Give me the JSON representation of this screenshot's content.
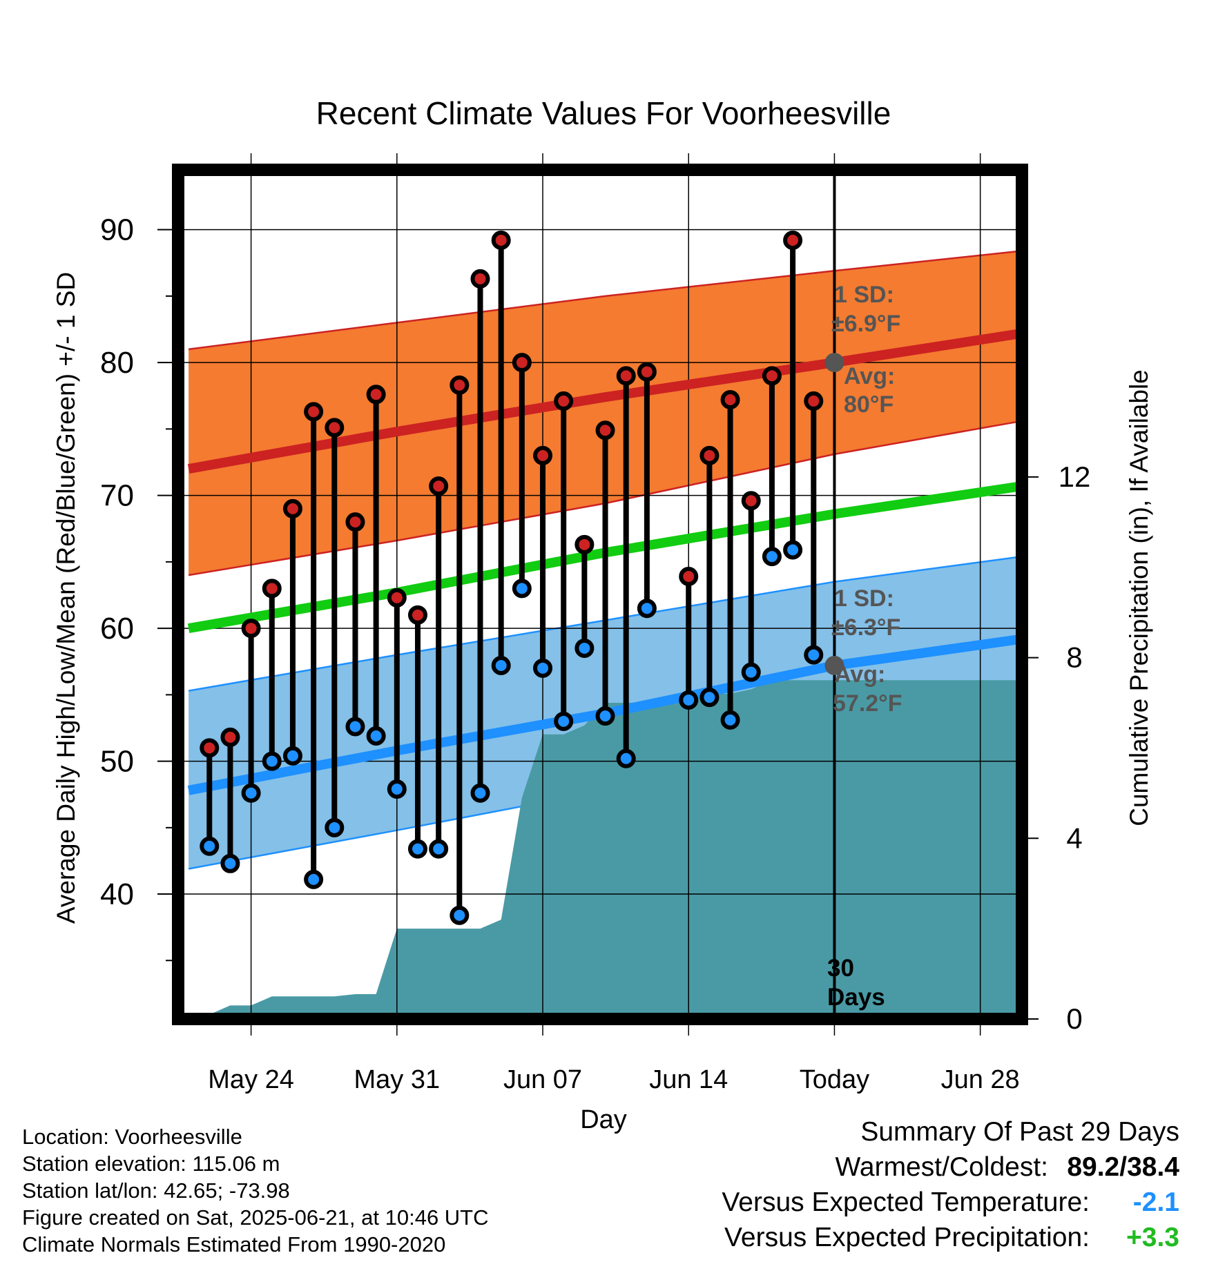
{
  "chart_data": {
    "type": "line",
    "title": "Recent Climate Values For Voorheesville",
    "xlabel": "Day",
    "ylabel": "Average Daily High/Low/Mean (Red/Blue/Green) +/- 1 SD",
    "y2label": "Cumulative Precipitation (in), If Available",
    "x_tick_labels": [
      "May 24",
      "May 31",
      "Jun 07",
      "Jun 14",
      "Today",
      "Jun 28"
    ],
    "x_tick_days": [
      3,
      10,
      17,
      24,
      31,
      38
    ],
    "xlim": [
      -0.5,
      40.0
    ],
    "ylim": [
      30.6,
      94.5
    ],
    "y_ticks": [
      40,
      50,
      60,
      70,
      80,
      90
    ],
    "y2lim": [
      0,
      18.8
    ],
    "y2_ticks": [
      0,
      4,
      8,
      12
    ],
    "grid": true,
    "colors": {
      "high": "#cc2222",
      "low": "#1e90ff",
      "mean": "#11cc11",
      "high_band": "#f47b30",
      "low_band": "#84c0e8",
      "precip": "#4a9aa5",
      "annotation": "#555555"
    },
    "normals": {
      "day": [
        0,
        10,
        20,
        31,
        40
      ],
      "high_avg": [
        72.0,
        74.8,
        77.4,
        80.0,
        82.2
      ],
      "high_sd_upper": [
        81.0,
        83.0,
        85.0,
        86.9,
        88.4
      ],
      "high_sd_lower": [
        64.0,
        66.6,
        69.4,
        73.1,
        75.6
      ],
      "mean_avg": [
        60.0,
        62.7,
        65.7,
        68.6,
        70.7
      ],
      "low_avg": [
        47.8,
        50.8,
        53.6,
        57.2,
        59.2
      ],
      "low_sd_upper": [
        55.3,
        58.0,
        60.6,
        63.5,
        65.4
      ],
      "low_sd_lower": [
        41.9,
        44.8,
        47.8,
        51.7,
        53.9
      ]
    },
    "series": [
      {
        "name": "High",
        "day": [
          1,
          2,
          3,
          4,
          5,
          6,
          7,
          8,
          9,
          10,
          11,
          12,
          13,
          14,
          15,
          16,
          17,
          18,
          19,
          20,
          21,
          22,
          24,
          25,
          26,
          27,
          28,
          29,
          30
        ],
        "values": [
          51.0,
          51.8,
          60.0,
          63.0,
          69.0,
          76.3,
          75.1,
          68.0,
          77.6,
          62.3,
          61.0,
          70.7,
          78.3,
          86.3,
          89.2,
          80.0,
          73.0,
          77.1,
          66.3,
          74.9,
          79.0,
          79.3,
          63.9,
          73.0,
          77.2,
          69.6,
          79.0,
          89.2,
          77.1
        ]
      },
      {
        "name": "Low",
        "day": [
          1,
          2,
          3,
          4,
          5,
          6,
          7,
          8,
          9,
          10,
          11,
          12,
          13,
          14,
          15,
          16,
          17,
          18,
          19,
          20,
          21,
          22,
          24,
          25,
          26,
          27,
          28,
          29,
          30
        ],
        "values": [
          43.6,
          42.3,
          47.6,
          50.0,
          50.4,
          41.1,
          45.0,
          52.6,
          51.9,
          47.9,
          43.4,
          43.4,
          38.4,
          47.6,
          57.2,
          63.0,
          57.0,
          53.0,
          58.5,
          53.4,
          50.2,
          61.5,
          54.6,
          54.8,
          53.1,
          56.7,
          65.4,
          65.9,
          58.0
        ]
      },
      {
        "name": "Cumulative Precipitation",
        "day": [
          0,
          1,
          2,
          3,
          4,
          5,
          6,
          7,
          8,
          9,
          10,
          11,
          12,
          13,
          14,
          15,
          16,
          17,
          18,
          19,
          20,
          21,
          22,
          23,
          24,
          25,
          26,
          27,
          28,
          29,
          31,
          40
        ],
        "values": [
          0,
          0.1,
          0.3,
          0.3,
          0.5,
          0.5,
          0.5,
          0.5,
          0.55,
          0.55,
          2.0,
          2.0,
          2.0,
          2.0,
          2.0,
          2.2,
          4.9,
          6.3,
          6.3,
          6.5,
          7.0,
          7.0,
          7.0,
          7.0,
          7.2,
          7.2,
          7.2,
          7.3,
          7.5,
          7.5,
          7.5,
          7.5
        ]
      }
    ],
    "annotations": {
      "high_sd_title": "1 SD:",
      "high_sd_value": "±6.9°F",
      "high_avg_title": "Avg:",
      "high_avg_value": "80°F",
      "low_sd_title": "1 SD:",
      "low_sd_value": "±6.3°F",
      "low_avg_title": "Avg:",
      "low_avg_value": "57.2°F",
      "today_line_1": "30",
      "today_line_2": "Days"
    }
  },
  "metadata_text": {
    "location": "Location: Voorheesville",
    "elevation": "Station elevation: 115.06 m",
    "latlon": "Station lat/lon: 42.65; -73.98",
    "created": "Figure created on Sat, 2025-06-21, at 10:46 UTC",
    "normals": "Climate Normals Estimated From 1990-2020"
  },
  "summary": {
    "title": "Summary Of Past 29 Days",
    "warm_cold_label": "Warmest/Coldest:",
    "warm_cold_value": "89.2/38.4",
    "temp_label": "Versus Expected Temperature:",
    "temp_value": "-2.1",
    "precip_label": "Versus Expected Precipitation:",
    "precip_value": "+3.3"
  }
}
